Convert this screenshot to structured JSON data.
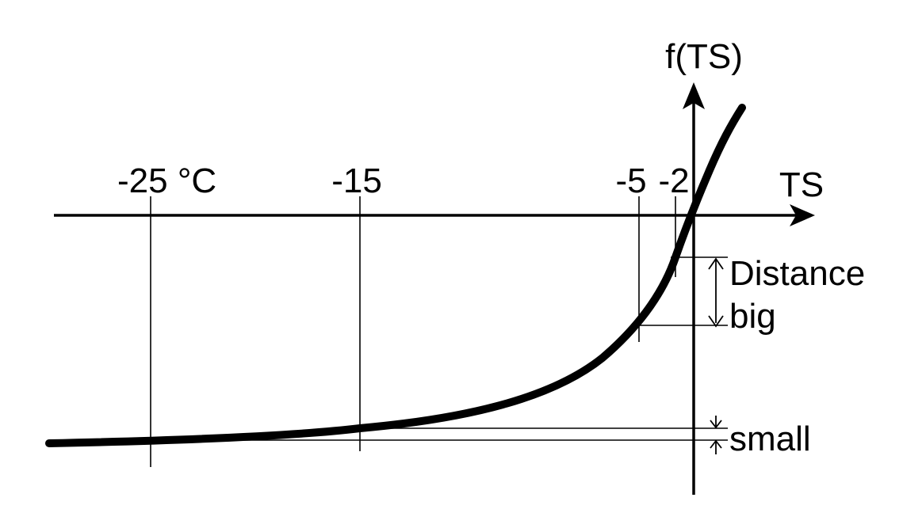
{
  "diagram": {
    "y_axis_label": "f(TS)",
    "x_axis_label": "TS",
    "tick_labels": {
      "m25": "-25 °C",
      "m15": "-15",
      "m5": "-5",
      "m2": "-2"
    },
    "annotation_big_line1": "Distance",
    "annotation_big_line2": "big",
    "annotation_small": "small",
    "curve_color": "#000000"
  }
}
